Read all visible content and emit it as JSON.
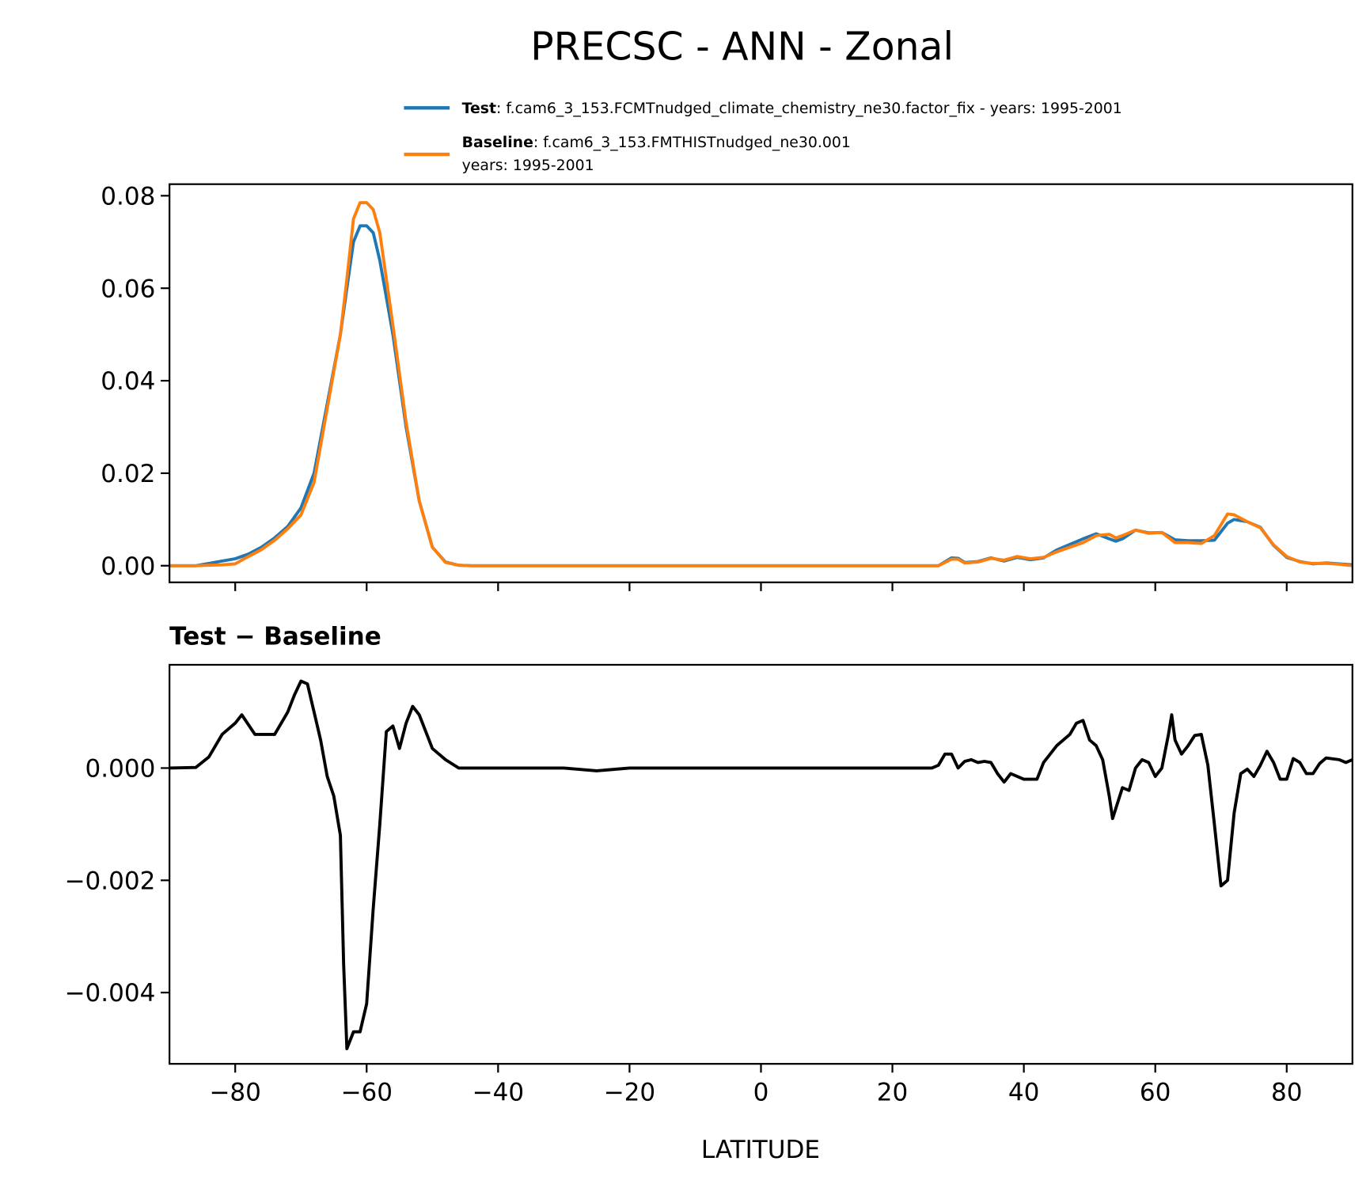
{
  "chart_data": [
    {
      "type": "line",
      "title": "PRECSC - ANN - Zonal",
      "xlabel": "",
      "ylabel": "",
      "xlim": [
        -90,
        90
      ],
      "ylim": [
        -0.0036,
        0.0825
      ],
      "xticks": [
        -80,
        -60,
        -40,
        -20,
        0,
        20,
        40,
        60,
        80
      ],
      "yticks": [
        0.0,
        0.02,
        0.04,
        0.06,
        0.08
      ],
      "ytick_labels": [
        "0.00",
        "0.02",
        "0.04",
        "0.06",
        "0.08"
      ],
      "grid": false,
      "legend_placement": "top",
      "legend": [
        {
          "bold": "Test",
          "text": ": f.cam6_3_153.FCMTnudged_climate_chemistry_ne30.factor_fix - years: 1995-2001",
          "color": "#1f77b4"
        },
        {
          "bold": "Baseline",
          "text": ": f.cam6_3_153.FMTHISTnudged_ne30.001",
          "text2": "years: 1995-2001",
          "color": "#ff7f0e"
        }
      ],
      "series": [
        {
          "name": "Test",
          "color": "#1f77b4",
          "x": [
            -90,
            -86,
            -84,
            -82,
            -80,
            -78,
            -76,
            -74,
            -72,
            -70,
            -68,
            -66,
            -64,
            -63,
            -62,
            -61,
            -60,
            -59,
            -58,
            -56,
            -54,
            -52,
            -50,
            -48,
            -46,
            -44,
            26,
            27,
            29,
            30,
            31,
            33,
            35,
            37,
            39,
            41,
            43,
            45,
            47,
            49,
            51,
            53,
            54,
            55,
            57,
            59,
            61,
            63,
            65,
            67,
            69,
            71,
            72,
            74,
            76,
            78,
            80,
            82,
            84,
            86,
            88,
            90
          ],
          "y": [
            0,
            0,
            0.0005,
            0.001,
            0.0015,
            0.0025,
            0.004,
            0.006,
            0.0085,
            0.0125,
            0.02,
            0.035,
            0.05,
            0.06,
            0.07,
            0.0735,
            0.0735,
            0.072,
            0.066,
            0.05,
            0.03,
            0.014,
            0.004,
            0.0008,
            0.0001,
            0,
            0,
            0,
            0.0017,
            0.0016,
            0.0007,
            0.0009,
            0.0017,
            0.001,
            0.0018,
            0.0013,
            0.0017,
            0.0034,
            0.0046,
            0.0058,
            0.0069,
            0.0058,
            0.0053,
            0.0058,
            0.0077,
            0.0071,
            0.0072,
            0.0056,
            0.0054,
            0.0054,
            0.0055,
            0.0092,
            0.01,
            0.0095,
            0.0083,
            0.0044,
            0.0018,
            0.0009,
            0.0004,
            0.0006,
            0.0004,
            0.0002
          ]
        },
        {
          "name": "Baseline",
          "color": "#ff7f0e",
          "x": [
            -90,
            -86,
            -84,
            -82,
            -80,
            -78,
            -76,
            -74,
            -72,
            -70,
            -68,
            -66,
            -64,
            -63,
            -62,
            -61,
            -60,
            -59,
            -58,
            -56,
            -54,
            -52,
            -50,
            -48,
            -46,
            -44,
            26,
            27,
            29,
            30,
            31,
            33,
            35,
            37,
            39,
            41,
            43,
            45,
            47,
            49,
            51,
            53,
            54,
            55,
            57,
            59,
            61,
            63,
            65,
            67,
            69,
            71,
            72,
            74,
            76,
            78,
            80,
            82,
            84,
            86,
            88,
            90
          ],
          "y": [
            0,
            0,
            0.0001,
            0.0002,
            0.0004,
            0.002,
            0.0035,
            0.0055,
            0.008,
            0.011,
            0.018,
            0.034,
            0.05,
            0.062,
            0.075,
            0.0785,
            0.0785,
            0.077,
            0.072,
            0.052,
            0.031,
            0.014,
            0.004,
            0.0007,
            0.0001,
            0,
            0,
            0,
            0.0014,
            0.0014,
            0.0006,
            0.0008,
            0.0016,
            0.0012,
            0.002,
            0.0015,
            0.0018,
            0.003,
            0.004,
            0.005,
            0.0065,
            0.0068,
            0.006,
            0.0065,
            0.0077,
            0.007,
            0.0072,
            0.005,
            0.005,
            0.0048,
            0.0065,
            0.0112,
            0.011,
            0.0095,
            0.0082,
            0.0045,
            0.002,
            0.0008,
            0.0005,
            0.0005,
            0.0003,
            0
          ]
        }
      ]
    },
    {
      "type": "line",
      "title": "Test − Baseline",
      "xlabel": "LATITUDE",
      "ylabel": "",
      "xlim": [
        -90,
        90
      ],
      "ylim": [
        -0.00527,
        0.00184
      ],
      "xticks": [
        -80,
        -60,
        -40,
        -20,
        0,
        20,
        40,
        60,
        80
      ],
      "xtick_labels": [
        "−80",
        "−60",
        "−40",
        "−20",
        "0",
        "20",
        "40",
        "60",
        "80"
      ],
      "yticks": [
        0.0,
        -0.002,
        -0.004
      ],
      "ytick_labels": [
        "0.000",
        "−0.002",
        "−0.004"
      ],
      "grid": false,
      "series": [
        {
          "color": "#000000",
          "x": [
            -90,
            -86,
            -84,
            -82,
            -80,
            -79,
            -77,
            -74,
            -72,
            -71,
            -70,
            -69,
            -68,
            -67,
            -66,
            -65,
            -64,
            -63.5,
            -63,
            -62,
            -61,
            -60,
            -59,
            -58,
            -57,
            -56,
            -55,
            -54,
            -53,
            -52,
            -50,
            -48,
            -46,
            -40,
            -30,
            -25,
            -20,
            26,
            27,
            28,
            29,
            30,
            31,
            32,
            33,
            34,
            35,
            36,
            37,
            38,
            40,
            42,
            43,
            45,
            47,
            48,
            49,
            50,
            51,
            52,
            53,
            53.5,
            55,
            56,
            57,
            58,
            59,
            60,
            61,
            62,
            62.5,
            63,
            64,
            65,
            66,
            67,
            68,
            69,
            70,
            71,
            72,
            73,
            74,
            75,
            76,
            77,
            78,
            79,
            80,
            81,
            82,
            83,
            84,
            85,
            86,
            88,
            89,
            90
          ],
          "y": [
            0,
            1e-05,
            0.0002,
            0.0006,
            0.0008,
            0.00095,
            0.0006,
            0.0006,
            0.001,
            0.0013,
            0.00155,
            0.0015,
            0.001,
            0.0005,
            -0.00015,
            -0.0005,
            -0.0012,
            -0.0035,
            -0.005,
            -0.0047,
            -0.0047,
            -0.0042,
            -0.0025,
            -0.001,
            0.00065,
            0.00075,
            0.00035,
            0.0008,
            0.0011,
            0.00095,
            0.00035,
            0.00015,
            0,
            0,
            0,
            -5e-05,
            0,
            0,
            5e-05,
            0.00025,
            0.00025,
            0,
            0.00012,
            0.00015,
            0.0001,
            0.00012,
            0.0001,
            -0.0001,
            -0.00025,
            -0.0001,
            -0.0002,
            -0.0002,
            0.0001,
            0.0004,
            0.0006,
            0.0008,
            0.00085,
            0.0005,
            0.0004,
            0.00015,
            -0.0005,
            -0.0009,
            -0.00035,
            -0.0004,
            0,
            0.00015,
            0.0001,
            -0.00015,
            0,
            0.0006,
            0.00095,
            0.0005,
            0.00025,
            0.0004,
            0.00058,
            0.0006,
            5e-05,
            -0.001,
            -0.0021,
            -0.002,
            -0.0008,
            -0.0001,
            -2e-05,
            -0.00015,
            5e-05,
            0.0003,
            0.0001,
            -0.0002,
            -0.0002,
            0.00017,
            0.0001,
            -0.0001,
            -0.0001,
            8e-05,
            0.00018,
            0.00015,
            0.0001,
            0.00015
          ]
        }
      ]
    }
  ]
}
